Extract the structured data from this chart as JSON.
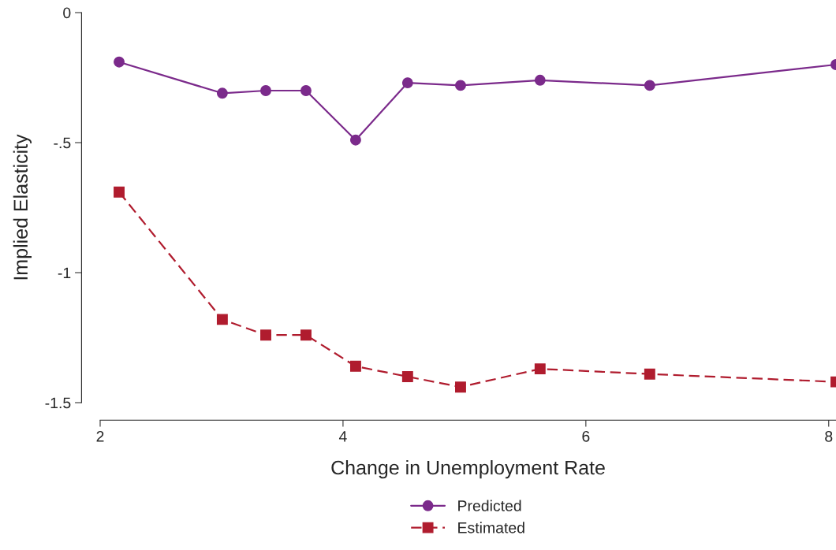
{
  "chart_data": {
    "type": "line",
    "xlabel": "Change in Unemployment Rate",
    "ylabel": "Implied Elasticity",
    "x": [
      2.156,
      3.006,
      3.364,
      3.695,
      4.104,
      4.532,
      4.968,
      5.623,
      6.526,
      8.06
    ],
    "series": [
      {
        "name": "Predicted",
        "color": "#7b2a8b",
        "marker": "circle",
        "line_style": "solid",
        "values": [
          -0.19,
          -0.31,
          -0.3,
          -0.3,
          -0.49,
          -0.27,
          -0.28,
          -0.26,
          -0.28,
          -0.2
        ]
      },
      {
        "name": "Estimated",
        "color": "#b01c2e",
        "marker": "square",
        "line_style": "dashed",
        "values": [
          -0.69,
          -1.18,
          -1.24,
          -1.24,
          -1.36,
          -1.4,
          -1.44,
          -1.37,
          -1.39,
          -1.42
        ]
      }
    ],
    "xlim": [
      2,
      8.06
    ],
    "xticks": [
      2,
      4,
      6,
      8
    ],
    "ylim": [
      -1.5,
      0
    ],
    "yticks": [
      {
        "value": -1.5,
        "label": "-1.5"
      },
      {
        "value": -1,
        "label": "-1"
      },
      {
        "value": -0.5,
        "label": "-.5"
      },
      {
        "value": 0,
        "label": "0"
      }
    ],
    "grid": false,
    "legend": "bottom"
  }
}
